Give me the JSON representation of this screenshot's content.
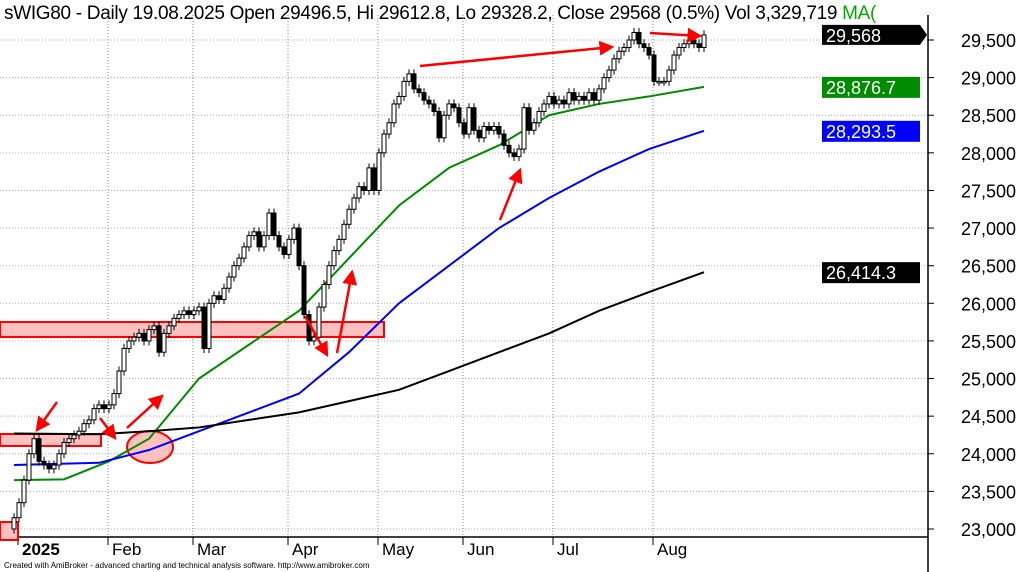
{
  "header": {
    "symbol": "sWIG80",
    "text": "sWIG80 - Daily 19.08.2025 Open 29496.5, Hi 29612.8, Lo 29328.2, Close 29568 (0.5%) Vol 3,329,719",
    "ma_fragment": "MA("
  },
  "footer": "Created with AmiBroker - advanced charting and technical analysis software. http://www.amibroker.com",
  "colors": {
    "ma_green": "#008c00",
    "ma_blue": "#0000ff",
    "ma_black": "#000000",
    "annotation_red": "#ff0000",
    "zone_fill": "#ffc0c0"
  },
  "chart_data": {
    "type": "candlestick",
    "title": "sWIG80 - Daily",
    "last_bar": {
      "date": "19.08.2025",
      "open": 29496.5,
      "high": 29612.8,
      "low": 29328.2,
      "close": 29568,
      "change": "0.5%",
      "volume": "3,329,719"
    },
    "ylim": [
      22800,
      29900
    ],
    "yticks": [
      "23,000",
      "23,500",
      "24,000",
      "24,500",
      "25,000",
      "25,500",
      "26,000",
      "26,500",
      "27,000",
      "27,500",
      "28,000",
      "28,500",
      "29,000",
      "29,500"
    ],
    "ytick_values": [
      23000,
      23500,
      24000,
      24500,
      25000,
      25500,
      26000,
      26500,
      27000,
      27500,
      28000,
      28500,
      29000,
      29500
    ],
    "xticks": [
      {
        "label": "2025",
        "bar": 0,
        "bold": true
      },
      {
        "label": "Feb",
        "bar": 19
      },
      {
        "label": "Mar",
        "bar": 36
      },
      {
        "label": "Apr",
        "bar": 55
      },
      {
        "label": "May",
        "bar": 73
      },
      {
        "label": "Jun",
        "bar": 90
      },
      {
        "label": "Jul",
        "bar": 108
      },
      {
        "label": "Aug",
        "bar": 128
      }
    ],
    "grid": true,
    "closes": [
      23150,
      23350,
      23650,
      24000,
      24200,
      23900,
      23850,
      23800,
      23850,
      24000,
      24150,
      24200,
      24250,
      24300,
      24400,
      24450,
      24600,
      24650,
      24600,
      24650,
      24800,
      25100,
      25400,
      25500,
      25550,
      25600,
      25500,
      25650,
      25700,
      25350,
      25600,
      25700,
      25800,
      25850,
      25900,
      25850,
      25900,
      25950,
      25400,
      26000,
      26100,
      26050,
      26200,
      26350,
      26500,
      26600,
      26750,
      26900,
      26950,
      26750,
      26900,
      27200,
      26900,
      26750,
      26650,
      26850,
      27000,
      26500,
      25850,
      25500,
      25550,
      25950,
      26250,
      26500,
      26700,
      26850,
      27050,
      27250,
      27400,
      27550,
      27500,
      27800,
      27500,
      28000,
      28250,
      28400,
      28650,
      28750,
      28950,
      29050,
      28850,
      28800,
      28700,
      28650,
      28550,
      28200,
      28500,
      28650,
      28600,
      28400,
      28250,
      28600,
      28300,
      28200,
      28350,
      28300,
      28350,
      28250,
      28100,
      28000,
      27950,
      28050,
      28600,
      28300,
      28400,
      28550,
      28650,
      28750,
      28650,
      28700,
      28650,
      28800,
      28700,
      28750,
      28700,
      28800,
      28700,
      28850,
      29000,
      29100,
      29250,
      29350,
      29400,
      29500,
      29600,
      29450,
      29400,
      29300,
      28950,
      28950,
      28950,
      29100,
      29300,
      29400,
      29450,
      29500,
      29450,
      29400,
      29568
    ],
    "moving_averages": [
      {
        "color": "#008c00",
        "last_label": "28,876.7",
        "points": [
          [
            0,
            23650
          ],
          [
            10,
            23660
          ],
          [
            19,
            23900
          ],
          [
            27,
            24200
          ],
          [
            37,
            25000
          ],
          [
            57,
            25900
          ],
          [
            67,
            26600
          ],
          [
            77,
            27300
          ],
          [
            87,
            27800
          ],
          [
            97,
            28100
          ],
          [
            107,
            28500
          ],
          [
            117,
            28650
          ],
          [
            127,
            28750
          ],
          [
            138,
            28877
          ]
        ]
      },
      {
        "color": "#0000ff",
        "last_label": "28,293.5",
        "points": [
          [
            0,
            23850
          ],
          [
            17,
            23880
          ],
          [
            27,
            24050
          ],
          [
            37,
            24300
          ],
          [
            47,
            24550
          ],
          [
            57,
            24800
          ],
          [
            67,
            25350
          ],
          [
            77,
            26000
          ],
          [
            87,
            26500
          ],
          [
            97,
            27000
          ],
          [
            107,
            27400
          ],
          [
            117,
            27750
          ],
          [
            127,
            28050
          ],
          [
            138,
            28293
          ]
        ]
      },
      {
        "color": "#000000",
        "last_label": "26,414.3",
        "points": [
          [
            0,
            24270
          ],
          [
            17,
            24260
          ],
          [
            27,
            24300
          ],
          [
            37,
            24350
          ],
          [
            47,
            24450
          ],
          [
            57,
            24550
          ],
          [
            67,
            24700
          ],
          [
            77,
            24850
          ],
          [
            87,
            25100
          ],
          [
            97,
            25350
          ],
          [
            107,
            25600
          ],
          [
            117,
            25900
          ],
          [
            127,
            26150
          ],
          [
            138,
            26414
          ]
        ]
      }
    ],
    "last_close_label": "29,568"
  }
}
